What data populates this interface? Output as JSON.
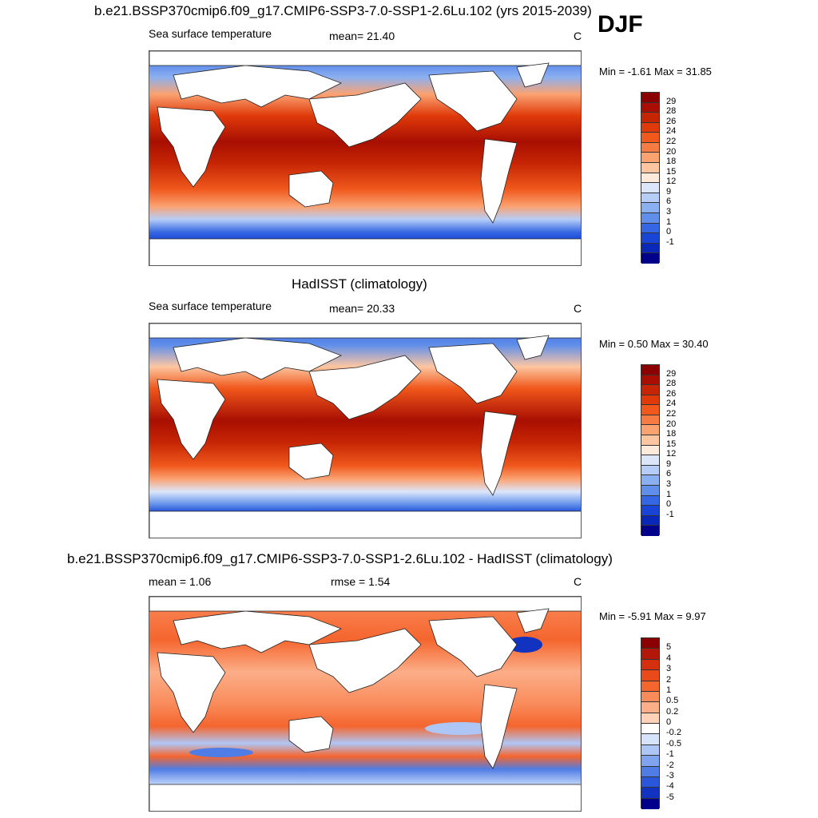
{
  "season": "DJF",
  "panels": [
    {
      "title": "b.e21.BSSP370cmip6.f09_g17.CMIP6-SSP3-7.0-SSP1-2.6Lu.102 (yrs 2015-2039)",
      "left_label": "Sea surface temperature",
      "center_label": "mean=  21.40",
      "units": "C",
      "minmax": "Min =  -1.61 Max =  31.85",
      "colorbar": {
        "ticks": [
          "29",
          "28",
          "26",
          "24",
          "22",
          "20",
          "18",
          "15",
          "12",
          "9",
          "6",
          "3",
          "1",
          "0",
          "-1"
        ],
        "colors": [
          "#8b0000",
          "#a80f02",
          "#c62504",
          "#e03a0a",
          "#f0581c",
          "#f77c44",
          "#fba271",
          "#fdc6a1",
          "#feeadb",
          "#dbe6fb",
          "#b5cdf7",
          "#8ab0f1",
          "#5f8fea",
          "#3566e3",
          "#1845d6",
          "#0a28b8",
          "#00008b"
        ]
      },
      "map": {
        "field": "mean SST",
        "ocean_palette": "warm-cold"
      }
    },
    {
      "title": "HadISST (climatology)",
      "left_label": "Sea surface temperature",
      "center_label": "mean=  20.33",
      "units": "C",
      "minmax": "Min =   0.50 Max =  30.40",
      "colorbar": {
        "ticks": [
          "29",
          "28",
          "26",
          "24",
          "22",
          "20",
          "18",
          "15",
          "12",
          "9",
          "6",
          "3",
          "1",
          "0",
          "-1"
        ],
        "colors": [
          "#8b0000",
          "#a80f02",
          "#c62504",
          "#e03a0a",
          "#f0581c",
          "#f77c44",
          "#fba271",
          "#fdc6a1",
          "#feeadb",
          "#dbe6fb",
          "#b5cdf7",
          "#8ab0f1",
          "#5f8fea",
          "#3566e3",
          "#1845d6",
          "#0a28b8",
          "#00008b"
        ]
      },
      "map": {
        "field": "observed SST",
        "ocean_palette": "warm-cold"
      }
    },
    {
      "title": "b.e21.BSSP370cmip6.f09_g17.CMIP6-SSP3-7.0-SSP1-2.6Lu.102 - HadISST (climatology)",
      "left_label": "mean =   1.06",
      "center_label": "rmse =   1.54",
      "units": "C",
      "minmax": "Min =  -5.91 Max =   9.97",
      "colorbar": {
        "ticks": [
          "5",
          "4",
          "3",
          "2",
          "1",
          "0.5",
          "0.2",
          "0",
          "-0.2",
          "-0.5",
          "-1",
          "-2",
          "-3",
          "-4",
          "-5"
        ],
        "colors": [
          "#8b0000",
          "#b2180a",
          "#d43010",
          "#ea4a1a",
          "#f5652e",
          "#f98a5a",
          "#fcae88",
          "#fdd2b8",
          "#ffffff",
          "#d6e3fb",
          "#aec6f5",
          "#7fa3ee",
          "#4f7de5",
          "#2a56da",
          "#1232c0",
          "#00008b"
        ]
      },
      "map": {
        "field": "difference",
        "ocean_palette": "diverging"
      }
    }
  ]
}
